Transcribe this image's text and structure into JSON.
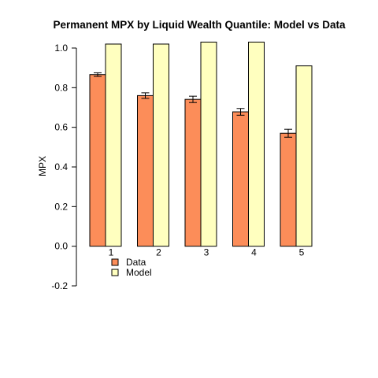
{
  "chart_data": {
    "type": "bar",
    "title": "Permanent MPX by Liquid Wealth Quantile: Model vs Data",
    "xlabel": "",
    "ylabel": "MPX",
    "categories": [
      "1",
      "2",
      "3",
      "4",
      "5"
    ],
    "ylim": [
      -0.2,
      1.0
    ],
    "yticks": [
      "-0.2",
      "0.0",
      "0.2",
      "0.4",
      "0.6",
      "0.8",
      "1.0"
    ],
    "grid": false,
    "legend_position": "bottom-left",
    "series": [
      {
        "name": "Data",
        "color": "#fc8d59",
        "values": [
          0.866,
          0.76,
          0.741,
          0.678,
          0.57
        ],
        "error": [
          0.009,
          0.014,
          0.016,
          0.017,
          0.02
        ]
      },
      {
        "name": "Model",
        "color": "#ffffbf",
        "values": [
          1.02,
          1.02,
          1.03,
          1.03,
          0.91
        ]
      }
    ]
  }
}
